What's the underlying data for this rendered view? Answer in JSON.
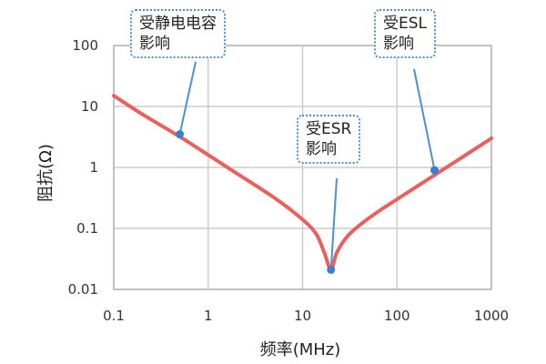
{
  "chart_data": {
    "type": "line",
    "xlabel": "频率(MHz)",
    "ylabel": "阻抗(Ω)",
    "x_scale": "log",
    "y_scale": "log",
    "xlim": [
      0.1,
      1000
    ],
    "ylim": [
      0.01,
      100
    ],
    "x_ticks": [
      "0.1",
      "1",
      "10",
      "100",
      "1000"
    ],
    "y_ticks": [
      "100",
      "10",
      "1",
      "0.1",
      "0.01"
    ],
    "grid": true,
    "line_color": "#e9605c",
    "series": [
      {
        "points": [
          [
            0.1,
            15
          ],
          [
            0.2,
            7.5
          ],
          [
            0.5,
            3.2
          ],
          [
            1,
            1.6
          ],
          [
            2,
            0.8
          ],
          [
            5,
            0.32
          ],
          [
            10,
            0.14
          ],
          [
            14,
            0.08
          ],
          [
            17,
            0.04
          ],
          [
            20,
            0.021
          ],
          [
            23,
            0.04
          ],
          [
            30,
            0.075
          ],
          [
            45,
            0.13
          ],
          [
            70,
            0.21
          ],
          [
            100,
            0.3
          ],
          [
            200,
            0.6
          ],
          [
            250,
            0.75
          ],
          [
            500,
            1.5
          ],
          [
            1000,
            3
          ]
        ]
      }
    ],
    "annotations": [
      {
        "id": "capacitance",
        "line1": "受静电电容",
        "line2": "影响",
        "point": [
          0.5,
          3.5
        ]
      },
      {
        "id": "esr",
        "line1": "受ESR",
        "line2": "影响",
        "point": [
          20,
          0.021
        ]
      },
      {
        "id": "esl",
        "line1": "受ESL",
        "line2": "影响",
        "point": [
          250,
          0.9
        ]
      }
    ],
    "callout_border_color": "#4a90d6",
    "marker_color": "#3b7fd1"
  }
}
